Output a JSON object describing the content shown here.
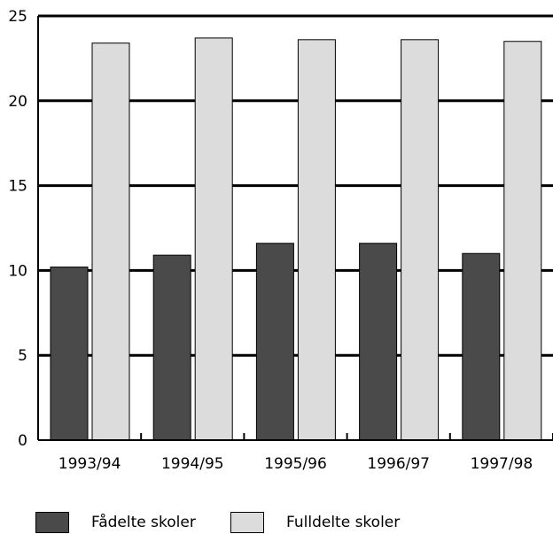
{
  "chart_data": {
    "type": "bar",
    "title": "",
    "xlabel": "",
    "ylabel": "",
    "categories": [
      "1993/94",
      "1994/95",
      "1995/96",
      "1996/97",
      "1997/98"
    ],
    "series": [
      {
        "name": "Fådelte skoler",
        "color": "#4a4a4a",
        "values": [
          10.2,
          10.9,
          11.6,
          11.6,
          11.0
        ]
      },
      {
        "name": "Fulldelte skoler",
        "color": "#dcdcdc",
        "values": [
          23.4,
          23.7,
          23.6,
          23.6,
          23.5
        ]
      }
    ],
    "ylim": [
      0,
      25
    ],
    "yticks": [
      0,
      5,
      10,
      15,
      20,
      25
    ],
    "ytick_labels": [
      "0",
      "5",
      "10",
      "15",
      "20",
      "25"
    ],
    "grid": true,
    "legend_position": "bottom"
  }
}
